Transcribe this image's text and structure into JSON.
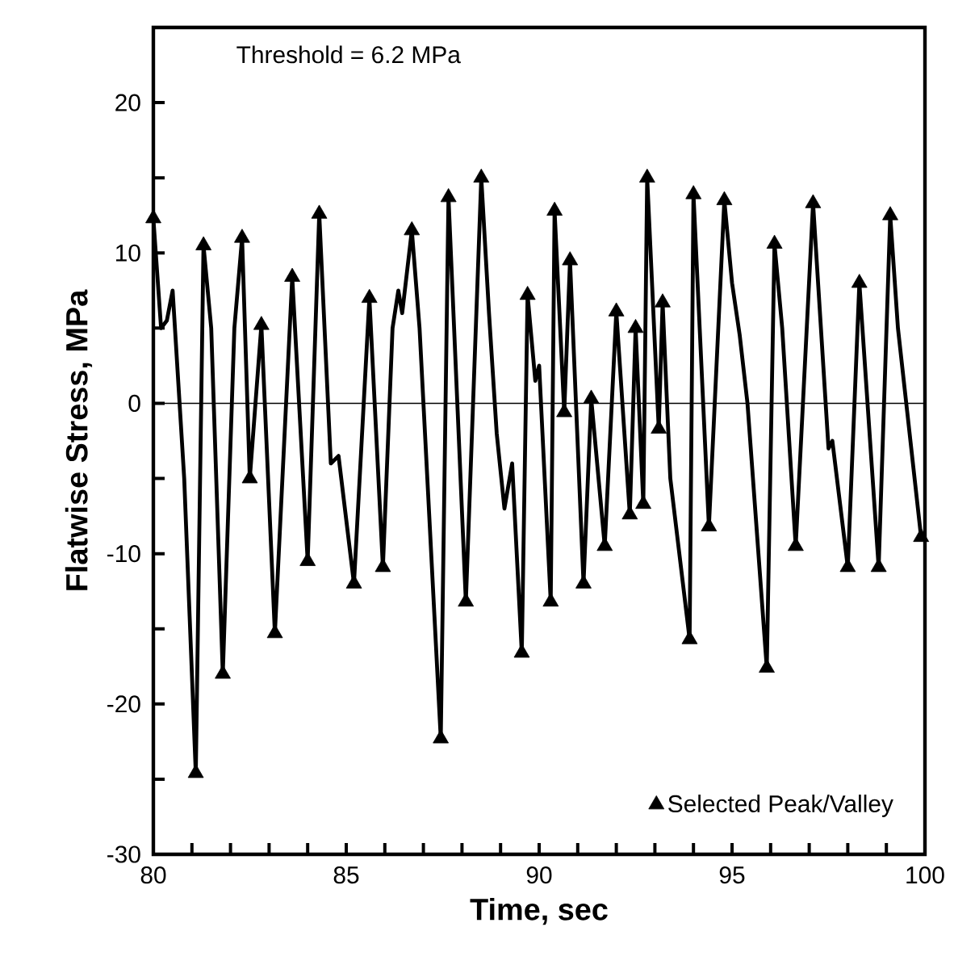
{
  "chart_data": {
    "type": "line",
    "xlabel": "Time, sec",
    "ylabel": "Flatwise Stress, MPa",
    "annotations": [
      "Threshold = 6.2 MPa"
    ],
    "xlim": [
      80,
      100
    ],
    "ylim": [
      -30,
      25
    ],
    "xticks": [
      80,
      {
        "value": 81,
        "label": null
      },
      {
        "value": 82,
        "label": null
      },
      {
        "value": 83,
        "label": null
      },
      {
        "value": 84,
        "label": null
      },
      85,
      {
        "value": 86,
        "label": null
      },
      {
        "value": 87,
        "label": null
      },
      {
        "value": 88,
        "label": null
      },
      {
        "value": 89,
        "label": null
      },
      90,
      {
        "value": 91,
        "label": null
      },
      {
        "value": 92,
        "label": null
      },
      {
        "value": 93,
        "label": null
      },
      {
        "value": 94,
        "label": null
      },
      95,
      {
        "value": 96,
        "label": null
      },
      {
        "value": 97,
        "label": null
      },
      {
        "value": 98,
        "label": null
      },
      {
        "value": 99,
        "label": null
      },
      100
    ],
    "yticks": [
      -30,
      {
        "value": -25,
        "label": null
      },
      -20,
      {
        "value": -15,
        "label": null
      },
      -10,
      {
        "value": -5,
        "label": null
      },
      0,
      {
        "value": 5,
        "label": null
      },
      10,
      {
        "value": 15,
        "label": null
      },
      20
    ],
    "legend": "bottom right",
    "ref_lines": [
      {
        "axis": "y",
        "value": 0,
        "color": "#000000"
      }
    ],
    "series": [
      {
        "color": "#000000",
        "marker": "none",
        "x": [
          80.0,
          80.2,
          80.35,
          80.5,
          80.8,
          81.1,
          81.3,
          81.5,
          81.8,
          82.1,
          82.3,
          82.5,
          82.8,
          83.15,
          83.6,
          84.0,
          84.3,
          84.6,
          84.8,
          85.2,
          85.6,
          85.95,
          86.2,
          86.35,
          86.45,
          86.7,
          86.9,
          87.45,
          87.65,
          88.1,
          88.5,
          88.7,
          88.9,
          89.1,
          89.3,
          89.55,
          89.7,
          89.9,
          90.0,
          90.3,
          90.4,
          90.65,
          90.8,
          91.15,
          91.35,
          91.7,
          92.0,
          92.35,
          92.5,
          92.7,
          92.8,
          93.1,
          93.2,
          93.4,
          93.9,
          94.0,
          94.4,
          94.8,
          95.0,
          95.2,
          95.4,
          95.9,
          96.1,
          96.3,
          96.65,
          97.1,
          97.5,
          97.6,
          98.0,
          98.3,
          98.8,
          99.1,
          99.3,
          99.9
        ],
        "values": [
          12.3,
          5,
          5.5,
          7.5,
          -5,
          -24.6,
          10.5,
          5,
          -18.0,
          5,
          11.0,
          -5.0,
          5.2,
          -15.3,
          8.4,
          -10.5,
          12.6,
          -4,
          -3.5,
          -12.0,
          7.0,
          -10.9,
          5,
          7.5,
          6,
          11.5,
          5,
          -22.3,
          13.7,
          -13.2,
          15.0,
          6,
          -2,
          -7,
          -4,
          -16.6,
          7.2,
          1.5,
          2.5,
          -13.2,
          12.8,
          -0.6,
          9.5,
          -12.0,
          0.3,
          -9.5,
          6.1,
          -7.4,
          5.0,
          -6.7,
          15.0,
          -1.7,
          6.7,
          -5,
          -15.7,
          13.9,
          -8.2,
          13.5,
          8,
          4.5,
          0,
          -17.6,
          10.6,
          5,
          -9.5,
          13.3,
          -3,
          -2.5,
          -10.9,
          8.0,
          -10.9,
          12.5,
          5,
          -8.9
        ]
      },
      {
        "type": "scatter",
        "name": "Selected Peak/Valley",
        "color": "#000000",
        "marker": "triangle",
        "x": [
          80.0,
          81.1,
          81.3,
          81.8,
          82.3,
          82.5,
          82.8,
          83.15,
          83.6,
          84.0,
          84.3,
          85.2,
          85.6,
          85.95,
          86.7,
          87.45,
          87.65,
          88.1,
          88.5,
          89.55,
          89.7,
          90.3,
          90.4,
          90.65,
          90.8,
          91.15,
          91.35,
          91.7,
          92.0,
          92.35,
          92.5,
          92.7,
          92.8,
          93.1,
          93.2,
          93.9,
          94.0,
          94.4,
          94.8,
          95.9,
          96.1,
          96.65,
          97.1,
          98.0,
          98.3,
          98.8,
          99.1,
          99.9
        ],
        "values": [
          12.3,
          -24.6,
          10.5,
          -18.0,
          11.0,
          -5.0,
          5.2,
          -15.3,
          8.4,
          -10.5,
          12.6,
          -12.0,
          7.0,
          -10.9,
          11.5,
          -22.3,
          13.7,
          -13.2,
          15.0,
          -16.6,
          7.2,
          -13.2,
          12.8,
          -0.6,
          9.5,
          -12.0,
          0.3,
          -9.5,
          6.1,
          -7.4,
          5.0,
          -6.7,
          15.0,
          -1.7,
          6.7,
          -15.7,
          13.9,
          -8.2,
          13.5,
          -17.6,
          10.6,
          -9.5,
          13.3,
          -10.9,
          8.0,
          -10.9,
          12.5,
          -8.9
        ]
      }
    ]
  }
}
